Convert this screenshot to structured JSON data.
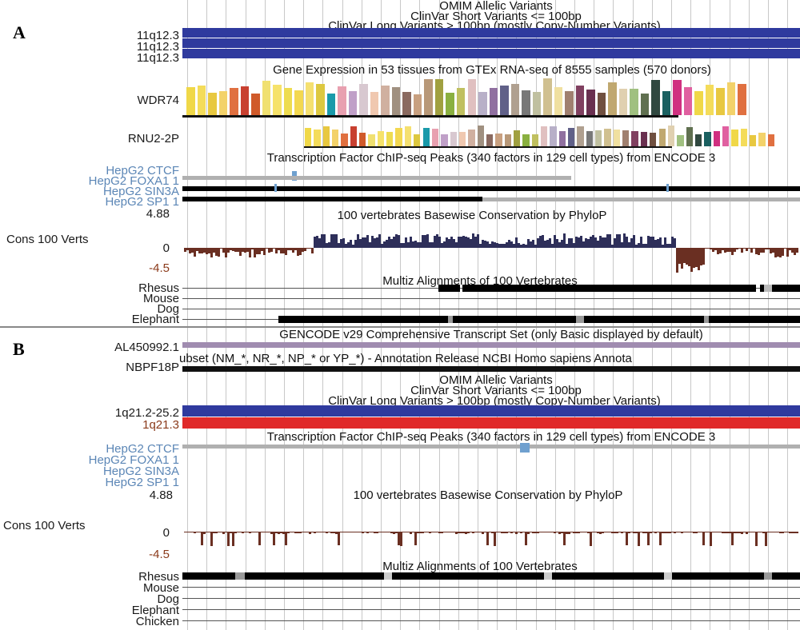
{
  "panels": [
    {
      "letter": "A"
    },
    {
      "letter": "B"
    }
  ],
  "panel_a": {
    "titles": {
      "omim": "OMIM Allelic Variants",
      "clinvar_short": "ClinVar Short Variants <= 100bp",
      "clinvar_long": "ClinVar Long Variants > 100bp (mostly Copy-Number Variants)",
      "gtex": "Gene Expression in 53 tissues from GTEx RNA-seq of 8555 samples (570 donors)",
      "tfbs": "Transcription Factor ChIP-seq Peaks (340 factors in 129 cell types) from ENCODE 3",
      "phylop": "100 vertebrates Basewise Conservation by PhyloP",
      "multiz": "Multiz Alignments of 100 Vertebrates"
    },
    "labels": {
      "band1": "11q12.3",
      "band2": "11q12.3",
      "band3": "11q12.3",
      "gene1": "WDR74",
      "gene2": "RNU2-2P",
      "tf1": "HepG2 CTCF",
      "tf2": "HepG2 FOXA1 1",
      "tf3": "HepG2 SIN3A",
      "tf4": "HepG2 SP1 1",
      "ymax": "4.88",
      "cons": "Cons 100 Verts",
      "zero": "0",
      "ymin": "-4.5",
      "sp1": "Rhesus",
      "sp2": "Mouse",
      "sp3": "Dog",
      "sp4": "Elephant"
    }
  },
  "panel_b": {
    "titles": {
      "gencode": "GENCODE v29 Comprehensive Transcript Set (only Basic displayed by default)",
      "refseq": "ubset (NM_*, NR_*, NP_* or YP_*) - Annotation Release NCBI Homo sapiens Annota",
      "omim": "OMIM Allelic Variants",
      "clinvar_short": "ClinVar Short Variants <= 100bp",
      "clinvar_long": "ClinVar Long Variants > 100bp (mostly Copy-Number Variants)",
      "tfbs": "Transcription Factor ChIP-seq Peaks (340 factors in 129 cell types) from ENCODE 3",
      "phylop": "100 vertebrates Basewise Conservation by PhyloP",
      "multiz": "Multiz Alignments of 100 Vertebrates"
    },
    "labels": {
      "gene1": "AL450992.1",
      "gene2": "NBPF18P",
      "band1": "1q21.2-25.2",
      "band2": "1q21.3",
      "tf1": "HepG2 CTCF",
      "tf2": "HepG2 FOXA1 1",
      "tf3": "HepG2 SIN3A",
      "tf4": "HepG2 SP1 1",
      "ymax": "4.88",
      "cons": "Cons 100 Verts",
      "zero": "0",
      "ymin": "-4.5",
      "sp1": "Rhesus",
      "sp2": "Mouse",
      "sp3": "Dog",
      "sp4": "Elephant",
      "sp5": "Chicken"
    }
  },
  "colors": {
    "clinvar_blue": "#2f3a9e",
    "clinvar_red": "#e02a2a",
    "cons_pos": "#2e2f5a",
    "cons_neg": "#6a2f22",
    "tf_gray": "#b0b0b0",
    "tf_black": "#000000",
    "tf_blue": "#6fa0cf"
  }
}
